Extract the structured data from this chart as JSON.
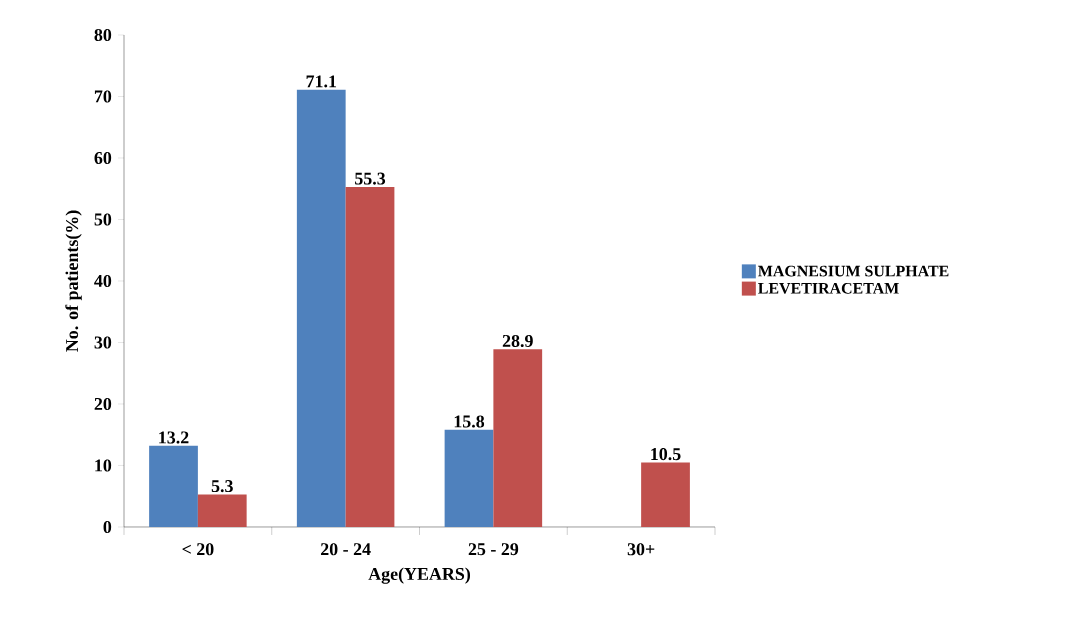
{
  "chart_data": {
    "type": "bar",
    "xlabel": "Age(YEARS)",
    "ylabel": "No. of patients(%)",
    "categories": [
      "< 20",
      "20 - 24",
      "25 - 29",
      "30+"
    ],
    "series": [
      {
        "name": "MAGNESIUM SULPHATE",
        "color": "#4f81bd",
        "values": [
          13.2,
          71.1,
          15.8,
          null
        ]
      },
      {
        "name": "LEVETIRACETAM",
        "color": "#c0504d",
        "values": [
          5.3,
          55.3,
          28.9,
          10.5
        ]
      }
    ],
    "ylim": [
      0,
      80
    ],
    "yticks": [
      0,
      10,
      20,
      30,
      40,
      50,
      60,
      70,
      80
    ],
    "data_labels": true,
    "legend": "right"
  }
}
